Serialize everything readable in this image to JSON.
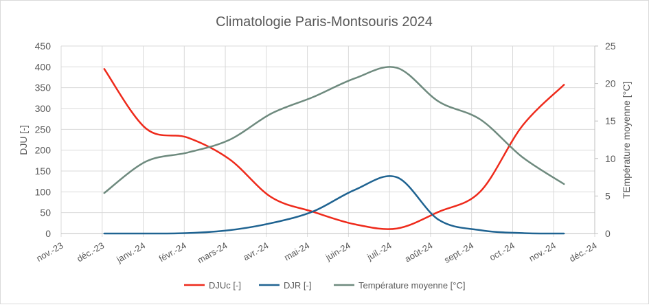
{
  "chart_data": {
    "type": "line",
    "title": "Climatologie Paris-Montsouris 2024",
    "ylabel": "DJU [-]",
    "y2label": "TEmpérature moyenne [°C]",
    "ylim": [
      0,
      450
    ],
    "yticks": [
      0,
      50,
      100,
      150,
      200,
      250,
      300,
      350,
      400,
      450
    ],
    "y2lim": [
      0,
      25
    ],
    "y2ticks": [
      0,
      5,
      10,
      15,
      20,
      25
    ],
    "xticks": [
      "nov.-23",
      "déc.-23",
      "janv.-24",
      "févr.-24",
      "mars-24",
      "avr.-24",
      "mai-24",
      "juin-24",
      "juil.-24",
      "août-24",
      "sept.-24",
      "oct.-24",
      "nov.-24",
      "déc.-24"
    ],
    "x": [
      "déc.-23",
      "janv.-24",
      "févr.-24",
      "mars-24",
      "avr.-24",
      "mai-24",
      "juin-24",
      "juil.-24",
      "août-24",
      "sept.-24",
      "oct.-24",
      "nov.-24"
    ],
    "grid": true,
    "legend": "bottom",
    "series": [
      {
        "name": "DJUc [-]",
        "axis": "left",
        "color": "#ee2a1b",
        "values": [
          395,
          252,
          230,
          178,
          87,
          52,
          22,
          12,
          52,
          101,
          258,
          357
        ]
      },
      {
        "name": "DJR [-]",
        "axis": "left",
        "color": "#1f6391",
        "values": [
          0,
          0,
          1,
          8,
          25,
          53,
          105,
          135,
          33,
          8,
          1,
          0
        ]
      },
      {
        "name": "Température moyenne [°C]",
        "axis": "right",
        "color": "#6e8a7e",
        "values": [
          5.4,
          9.6,
          10.8,
          12.5,
          16.0,
          18.2,
          20.7,
          22.1,
          17.6,
          15.2,
          10.2,
          6.6
        ]
      }
    ]
  }
}
